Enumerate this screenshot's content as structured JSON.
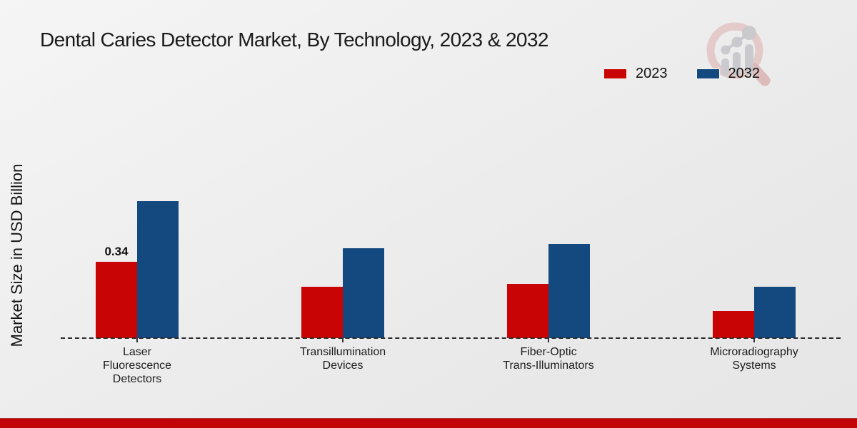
{
  "title": "Dental Caries Detector Market, By Technology, 2023 & 2032",
  "y_axis_label": "Market Size in USD Billion",
  "legend": {
    "items": [
      {
        "label": "2023",
        "color": "#c90404"
      },
      {
        "label": "2032",
        "color": "#14497f"
      }
    ]
  },
  "logo": {
    "name": "magnifier-bar-chart-logo"
  },
  "colors": {
    "series_2023": "#c90404",
    "series_2032": "#14497f",
    "bottom_strip": "#c10404",
    "baseline": "#2b2b2b"
  },
  "chart_data": {
    "type": "bar",
    "title": "Dental Caries Detector Market, By Technology, 2023 & 2032",
    "xlabel": "",
    "ylabel": "Market Size in USD Billion",
    "categories": [
      "Laser Fluorescence Detectors",
      "Transillumination Devices",
      "Fiber-Optic Trans-Illuminators",
      "Microradiography Systems"
    ],
    "category_label_lines": [
      [
        "Laser",
        "Fluorescence",
        "Detectors"
      ],
      [
        "Transillumination",
        "Devices"
      ],
      [
        "Fiber-Optic",
        "Trans-Illuminators"
      ],
      [
        "Microradiography",
        "Systems"
      ]
    ],
    "series": [
      {
        "name": "2023",
        "color": "#c90404",
        "values": [
          0.34,
          0.23,
          0.24,
          0.12
        ],
        "data_labels": [
          "0.34",
          "",
          "",
          ""
        ]
      },
      {
        "name": "2032",
        "color": "#14497f",
        "values": [
          0.61,
          0.4,
          0.42,
          0.23
        ],
        "data_labels": [
          "",
          "",
          "",
          ""
        ]
      }
    ],
    "ylim": [
      0,
      0.65
    ],
    "grid": false,
    "y_axis_ticks_visible": false,
    "legend_position": "top-right",
    "baseline_style": "dashed"
  }
}
